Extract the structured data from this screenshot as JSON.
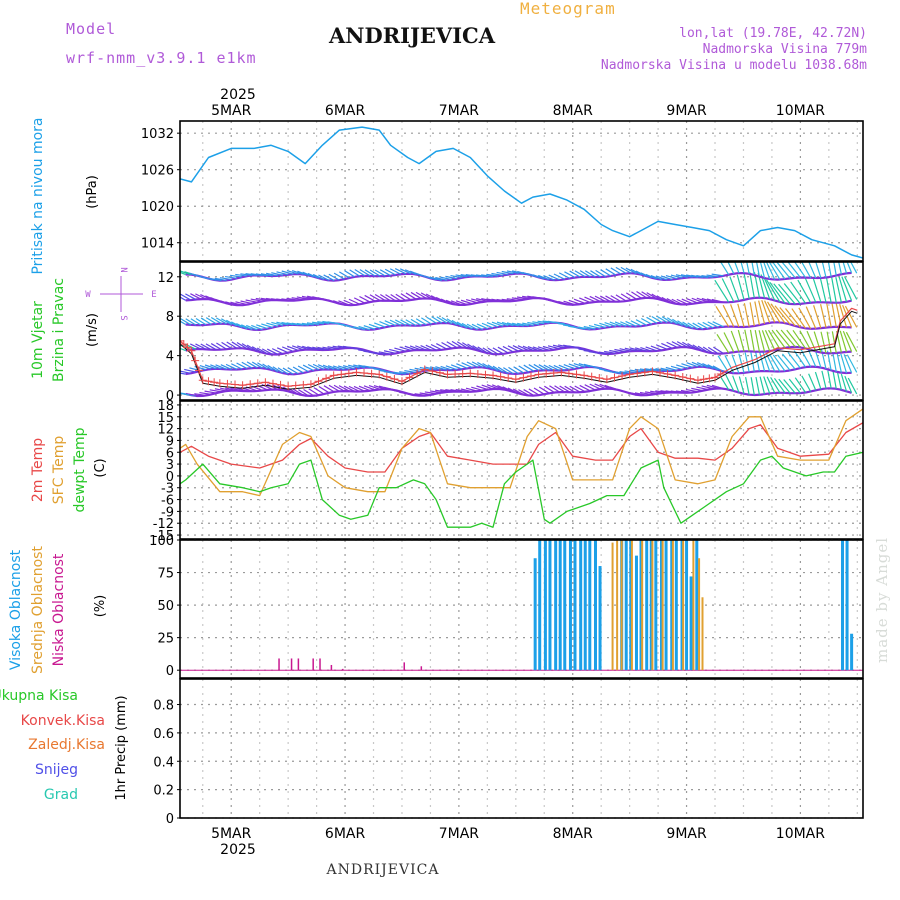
{
  "header": {
    "model_label": "Model",
    "model_name": "wrf-nmm_v3.9.1 e1km",
    "station": "ANDRIJEVICA",
    "product": "Meteogram",
    "coords": "lon,lat (19.78E, 42.72N)",
    "elevation": "Nadmorska Visina 779m",
    "model_elevation": "Nadmorska Visina u modelu 1038.68m"
  },
  "time_axis": {
    "year": "2025",
    "labels": [
      "5MAR",
      "6MAR",
      "7MAR",
      "8MAR",
      "9MAR",
      "10MAR"
    ]
  },
  "panels": {
    "pressure": {
      "label": "Pritisak na nivou mora",
      "unit": "(hPa)"
    },
    "wind": {
      "label_1": "10m Vjetar",
      "label_2": "Brzina i Pravac",
      "unit": "(m/s)",
      "compass_n": "N",
      "compass_s": "S",
      "compass_w": "W",
      "compass_e": "E"
    },
    "temp": {
      "label_1": "2m Temp",
      "label_2": "SFC Temp",
      "label_3": "dewpt Temp",
      "unit": "(C)"
    },
    "cloud": {
      "label_1": "Visoka Oblacnost",
      "label_2": "Srednja Oblacnost",
      "label_3": "Niska Oblacnost",
      "unit": "(%)"
    },
    "precip": {
      "label_1": "Ukupna Kisa",
      "label_2": "Konvek.Kisa",
      "label_3": "Zaledj.Kisa",
      "label_4": "Snijeg",
      "label_5": "Grad",
      "unit": "1hr Precip (mm)"
    }
  },
  "credit": "made by Angel",
  "footer": "ANDRIJEVICA",
  "colors": {
    "pressure": "#1ca0e8",
    "temp_2m": "#e84848",
    "temp_sfc": "#e0a030",
    "dewpoint": "#28c828",
    "cloud_high": "#1ca0e8",
    "cloud_mid": "#e0a030",
    "cloud_low": "#c81890",
    "wind_speed": "#e84848",
    "isotach": "#8030d8",
    "precip_total": "#28c828",
    "precip_conv": "#e84848",
    "precip_frz": "#e87830",
    "precip_snow": "#5050e8",
    "precip_hail": "#28c8b0",
    "model_text": "#b05ad8"
  },
  "chart_data": [
    {
      "type": "line",
      "name": "pressure",
      "x_unit": "day of March 2025",
      "y_ticks": [
        1014,
        1020,
        1026,
        1032
      ],
      "ylim": [
        1011,
        1034
      ],
      "series": [
        {
          "name": "Pritisak na nivou mora",
          "x": [
            4.55,
            4.65,
            4.8,
            5.0,
            5.2,
            5.35,
            5.5,
            5.65,
            5.8,
            5.95,
            6.15,
            6.3,
            6.4,
            6.55,
            6.65,
            6.8,
            6.95,
            7.1,
            7.25,
            7.4,
            7.55,
            7.65,
            7.8,
            7.95,
            8.1,
            8.25,
            8.35,
            8.5,
            8.6,
            8.75,
            8.9,
            9.05,
            9.2,
            9.35,
            9.5,
            9.65,
            9.8,
            9.95,
            10.1,
            10.3,
            10.45,
            10.55
          ],
          "y": [
            1024.5,
            1024,
            1028,
            1029.5,
            1029.5,
            1030,
            1029,
            1027,
            1030,
            1032.5,
            1033,
            1032.5,
            1030,
            1028,
            1027,
            1029,
            1029.5,
            1028,
            1025,
            1022.5,
            1020.5,
            1021.5,
            1022,
            1021,
            1019.5,
            1017,
            1016,
            1015,
            1016,
            1017.5,
            1017,
            1016.5,
            1016,
            1014.5,
            1013.5,
            1016,
            1016.5,
            1016,
            1014.5,
            1013.5,
            1012,
            1011.5
          ]
        }
      ]
    },
    {
      "type": "line",
      "name": "wind",
      "x_unit": "day of March 2025",
      "y_ticks": [
        0,
        4,
        8,
        12
      ],
      "ylim": [
        -0.5,
        13.5
      ],
      "isotach_levels": [
        0.3,
        2.5,
        4.5,
        7,
        9.5,
        12
      ],
      "series": [
        {
          "name": "10m wind speed",
          "x": [
            4.55,
            4.65,
            4.75,
            4.9,
            5.1,
            5.3,
            5.5,
            5.7,
            5.9,
            6.1,
            6.3,
            6.5,
            6.7,
            6.9,
            7.1,
            7.3,
            7.5,
            7.7,
            7.9,
            8.1,
            8.3,
            8.5,
            8.7,
            8.9,
            9.1,
            9.25,
            9.4,
            9.6,
            9.8,
            10.0,
            10.2,
            10.3,
            10.35,
            10.45,
            10.5
          ],
          "y": [
            5.5,
            4.5,
            1.5,
            1.2,
            1.0,
            1.3,
            0.9,
            1.1,
            2.0,
            2.3,
            2.1,
            1.4,
            2.6,
            2.1,
            2.2,
            2.0,
            1.6,
            2.1,
            2.3,
            2.0,
            1.6,
            2.1,
            2.4,
            2.0,
            1.5,
            1.8,
            2.8,
            3.6,
            4.8,
            4.6,
            5.0,
            5.2,
            7.5,
            8.8,
            8.6
          ]
        }
      ]
    },
    {
      "type": "line",
      "name": "temperature",
      "x_unit": "day of March 2025",
      "y_ticks": [
        -15,
        -12,
        -9,
        -6,
        -3,
        0,
        3,
        6,
        9,
        12,
        15,
        18
      ],
      "ylim": [
        -16,
        19
      ],
      "series": [
        {
          "name": "2m Temp",
          "x": [
            4.55,
            4.65,
            4.8,
            5.0,
            5.25,
            5.45,
            5.6,
            5.7,
            5.85,
            6.0,
            6.2,
            6.35,
            6.5,
            6.65,
            6.75,
            6.9,
            7.1,
            7.3,
            7.45,
            7.6,
            7.7,
            7.85,
            8.0,
            8.2,
            8.35,
            8.5,
            8.6,
            8.75,
            8.9,
            9.1,
            9.25,
            9.4,
            9.55,
            9.65,
            9.8,
            10.0,
            10.25,
            10.4,
            10.55
          ],
          "y": [
            6,
            7.5,
            5,
            3,
            2,
            4,
            8,
            9.5,
            5,
            2,
            1,
            1,
            7,
            10,
            11,
            5,
            4,
            3,
            3,
            3,
            8,
            11,
            5,
            4,
            4,
            10,
            12,
            6,
            4.5,
            4.5,
            4,
            7,
            12,
            13,
            7,
            5,
            5.5,
            11,
            13.5
          ]
        },
        {
          "name": "SFC Temp",
          "x": [
            4.55,
            4.6,
            4.7,
            4.9,
            5.1,
            5.25,
            5.45,
            5.6,
            5.7,
            5.85,
            6.0,
            6.2,
            6.35,
            6.5,
            6.65,
            6.75,
            6.9,
            7.1,
            7.3,
            7.45,
            7.6,
            7.7,
            7.85,
            8.0,
            8.2,
            8.35,
            8.5,
            8.6,
            8.75,
            8.9,
            9.1,
            9.25,
            9.4,
            9.55,
            9.65,
            9.8,
            10.0,
            10.25,
            10.4,
            10.55
          ],
          "y": [
            7,
            8,
            3,
            -4,
            -4,
            -5,
            8,
            11,
            10,
            0,
            -3,
            -4,
            -4,
            7,
            12,
            11,
            -2,
            -3,
            -3,
            -3,
            10,
            14,
            12,
            -1,
            -1,
            -1,
            12,
            15,
            12,
            -1,
            -2,
            -1,
            10,
            15,
            15,
            5,
            4,
            4,
            14,
            17
          ]
        },
        {
          "name": "dewpt Temp",
          "x": [
            4.55,
            4.6,
            4.75,
            4.9,
            5.1,
            5.25,
            5.35,
            5.5,
            5.6,
            5.7,
            5.8,
            5.95,
            6.05,
            6.2,
            6.3,
            6.45,
            6.6,
            6.7,
            6.8,
            6.9,
            7.1,
            7.2,
            7.3,
            7.4,
            7.5,
            7.65,
            7.75,
            7.8,
            7.95,
            8.15,
            8.3,
            8.45,
            8.6,
            8.75,
            8.8,
            8.95,
            9.05,
            9.15,
            9.35,
            9.5,
            9.65,
            9.75,
            9.85,
            10.05,
            10.2,
            10.3,
            10.4,
            10.55
          ],
          "y": [
            -2,
            -1,
            3,
            -2,
            -3,
            -4,
            -3,
            -2,
            3,
            4,
            -6,
            -10,
            -11,
            -10,
            -3,
            -3,
            -1,
            -2,
            -6,
            -13,
            -13,
            -12,
            -13,
            -2,
            1,
            4,
            -11,
            -12,
            -9,
            -7,
            -5,
            -5,
            2,
            4,
            -3,
            -12,
            -10,
            -8,
            -4,
            -2,
            4,
            5,
            2,
            0,
            1,
            1,
            5,
            6
          ]
        }
      ]
    },
    {
      "type": "bar",
      "name": "cloud",
      "x_unit": "day of March 2025",
      "y_ticks": [
        0,
        25,
        50,
        75,
        100
      ],
      "ylim": [
        -6,
        100
      ],
      "series": [
        {
          "name": "Visoka Oblacnost",
          "x": [
            7.67,
            7.71,
            7.76,
            7.8,
            7.85,
            7.89,
            7.93,
            7.98,
            8.02,
            8.07,
            8.11,
            8.15,
            8.2,
            8.24,
            8.43,
            8.47,
            8.51,
            8.56,
            8.6,
            8.65,
            8.69,
            8.73,
            8.78,
            8.82,
            8.87,
            8.91,
            8.96,
            9.0,
            9.04,
            9.09,
            10.37,
            10.41,
            10.45
          ],
          "y": [
            86,
            100,
            100,
            100,
            100,
            100,
            100,
            100,
            100,
            100,
            100,
            100,
            100,
            80,
            100,
            100,
            100,
            88,
            100,
            100,
            100,
            100,
            100,
            100,
            100,
            100,
            100,
            100,
            72,
            100,
            100,
            100,
            28
          ]
        },
        {
          "name": "Srednja Oblacnost",
          "x": [
            8.35,
            8.39,
            8.43,
            8.52,
            8.61,
            8.7,
            8.79,
            8.88,
            8.97,
            9.06,
            9.11,
            9.14
          ],
          "y": [
            98,
            100,
            100,
            100,
            100,
            100,
            100,
            100,
            100,
            100,
            86,
            56
          ]
        },
        {
          "name": "Niska Oblacnost",
          "x": [
            5.42,
            5.53,
            5.59,
            5.72,
            5.78,
            5.88,
            5.98,
            6.52,
            6.67
          ],
          "y": [
            9,
            9,
            9,
            9,
            9,
            4,
            1,
            6,
            3
          ]
        }
      ]
    },
    {
      "type": "line",
      "name": "precipitation",
      "x_unit": "day of March 2025",
      "y_ticks": [
        0,
        0.2,
        0.4,
        0.6,
        0.8
      ],
      "ylim": [
        0,
        0.98
      ],
      "series": [
        {
          "name": "Ukupna Kisa",
          "x": [
            4.55,
            10.55
          ],
          "y": [
            0,
            0
          ]
        }
      ]
    }
  ]
}
